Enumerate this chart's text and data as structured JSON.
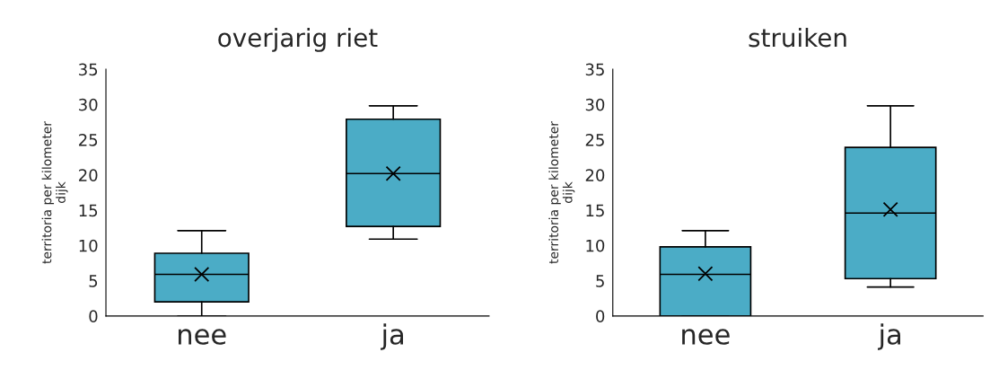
{
  "chart_data": [
    {
      "type": "box",
      "title": "overjarig riet",
      "ylabel": "territoria per kilometer\ndijk",
      "categories": [
        "nee",
        "ja"
      ],
      "ylim": [
        0,
        35
      ],
      "yticks": [
        0,
        5,
        10,
        15,
        20,
        25,
        30,
        35
      ],
      "grid": false,
      "marker": "cross",
      "color": "#4bacc6",
      "boxes": [
        {
          "low": 0,
          "q1": 2,
          "median": 5.9,
          "q3": 8.9,
          "high": 12.1,
          "mean": 5.9
        },
        {
          "low": 10.9,
          "q1": 12.7,
          "median": 20.2,
          "q3": 27.9,
          "high": 29.8,
          "mean": 20.2
        }
      ]
    },
    {
      "type": "box",
      "title": "struiken",
      "ylabel": "territoria per kilometer\ndijk",
      "categories": [
        "nee",
        "ja"
      ],
      "ylim": [
        0,
        35
      ],
      "yticks": [
        0,
        5,
        10,
        15,
        20,
        25,
        30,
        35
      ],
      "grid": false,
      "marker": "cross",
      "color": "#4bacc6",
      "boxes": [
        {
          "low": 0,
          "q1": 0,
          "median": 5.9,
          "q3": 9.8,
          "high": 12.1,
          "mean": 6.0
        },
        {
          "low": 4.1,
          "q1": 5.3,
          "median": 14.6,
          "q3": 23.9,
          "high": 29.8,
          "mean": 15.1
        }
      ]
    }
  ]
}
